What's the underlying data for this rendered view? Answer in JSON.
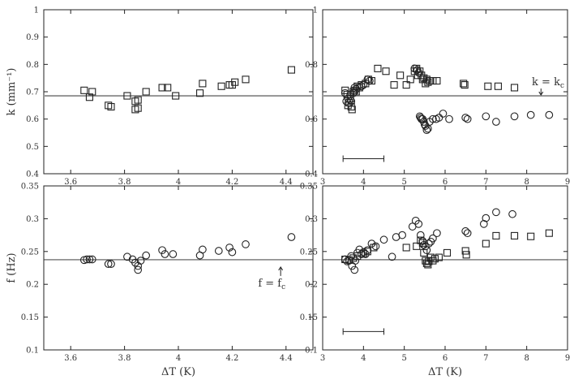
{
  "chart_data": [
    {
      "id": "top-left",
      "type": "scatter",
      "ylabel": "k (mm⁻¹)",
      "xlabel": "",
      "xlim": [
        3.5,
        4.5
      ],
      "ylim": [
        0.4,
        1.0
      ],
      "xticks": [
        3.6,
        3.8,
        4.0,
        4.2,
        4.4
      ],
      "xtick_labels": [
        "3.6",
        "3.8",
        "4",
        "4.2",
        "4.4"
      ],
      "yticks": [
        0.4,
        0.5,
        0.6,
        0.7,
        0.8,
        0.9,
        1.0
      ],
      "ytick_labels": [
        "0.4",
        "0.5",
        "0.6",
        "0.7",
        "0.8",
        "0.9",
        "1"
      ],
      "refline": {
        "y": 0.685,
        "style": "thick-gray"
      },
      "series": [
        {
          "marker": "square",
          "points": [
            [
              3.65,
              0.705
            ],
            [
              3.67,
              0.68
            ],
            [
              3.68,
              0.7
            ],
            [
              3.74,
              0.65
            ],
            [
              3.75,
              0.645
            ],
            [
              3.81,
              0.685
            ],
            [
              3.84,
              0.665
            ],
            [
              3.84,
              0.635
            ],
            [
              3.85,
              0.64
            ],
            [
              3.85,
              0.67
            ],
            [
              3.88,
              0.7
            ],
            [
              3.94,
              0.715
            ],
            [
              3.96,
              0.715
            ],
            [
              3.99,
              0.685
            ],
            [
              4.08,
              0.695
            ],
            [
              4.09,
              0.73
            ],
            [
              4.16,
              0.72
            ],
            [
              4.19,
              0.725
            ],
            [
              4.2,
              0.725
            ],
            [
              4.21,
              0.735
            ],
            [
              4.25,
              0.745
            ],
            [
              4.42,
              0.78
            ]
          ]
        }
      ]
    },
    {
      "id": "top-right",
      "type": "scatter",
      "ylabel": "",
      "xlabel": "",
      "xlim": [
        3,
        9
      ],
      "ylim": [
        0.4,
        1.0
      ],
      "xticks": [
        3,
        4,
        5,
        6,
        7,
        8,
        9
      ],
      "xtick_labels": [
        "3",
        "4",
        "5",
        "6",
        "7",
        "8",
        "9"
      ],
      "yticks": [
        0.4,
        0.5,
        0.6,
        0.7,
        0.8,
        0.9,
        1.0
      ],
      "ytick_labels": [
        "0.4",
        "0.6",
        "0.8",
        "1"
      ],
      "ytick_label_values": [
        0.4,
        0.6,
        0.8,
        1.0
      ],
      "refline": {
        "y": 0.685,
        "style": "thick-gray"
      },
      "annotation": {
        "text_main": "k = k",
        "text_sub": "c",
        "arrow_x": 8.35
      },
      "error_bar": {
        "x_center": 4.0,
        "half_width": 0.5,
        "y": 0.455
      },
      "series": [
        {
          "marker": "square",
          "points": [
            [
              3.55,
              0.705
            ],
            [
              3.6,
              0.69
            ],
            [
              3.62,
              0.65
            ],
            [
              3.65,
              0.66
            ],
            [
              3.68,
              0.675
            ],
            [
              3.7,
              0.645
            ],
            [
              3.72,
              0.635
            ],
            [
              3.75,
              0.7
            ],
            [
              3.78,
              0.705
            ],
            [
              3.82,
              0.7
            ],
            [
              3.85,
              0.72
            ],
            [
              3.9,
              0.715
            ],
            [
              3.95,
              0.725
            ],
            [
              4.05,
              0.73
            ],
            [
              4.12,
              0.745
            ],
            [
              4.2,
              0.74
            ],
            [
              4.35,
              0.785
            ],
            [
              4.55,
              0.775
            ],
            [
              4.75,
              0.725
            ],
            [
              4.9,
              0.76
            ],
            [
              5.05,
              0.725
            ],
            [
              5.15,
              0.745
            ],
            [
              5.25,
              0.775
            ],
            [
              5.3,
              0.785
            ],
            [
              5.33,
              0.76
            ],
            [
              5.38,
              0.775
            ],
            [
              5.42,
              0.76
            ],
            [
              5.45,
              0.745
            ],
            [
              5.48,
              0.75
            ],
            [
              5.52,
              0.73
            ],
            [
              5.55,
              0.745
            ],
            [
              5.58,
              0.735
            ],
            [
              5.62,
              0.74
            ],
            [
              5.7,
              0.74
            ],
            [
              5.8,
              0.74
            ],
            [
              6.45,
              0.73
            ],
            [
              6.48,
              0.725
            ],
            [
              7.05,
              0.72
            ],
            [
              7.3,
              0.72
            ],
            [
              7.7,
              0.715
            ]
          ]
        },
        {
          "marker": "circle",
          "points": [
            [
              3.55,
              0.695
            ],
            [
              3.58,
              0.665
            ],
            [
              3.62,
              0.675
            ],
            [
              3.68,
              0.69
            ],
            [
              3.7,
              0.665
            ],
            [
              3.75,
              0.695
            ],
            [
              3.78,
              0.715
            ],
            [
              3.82,
              0.71
            ],
            [
              3.95,
              0.72
            ],
            [
              4.0,
              0.725
            ],
            [
              4.1,
              0.745
            ],
            [
              4.15,
              0.74
            ],
            [
              5.25,
              0.785
            ],
            [
              5.32,
              0.78
            ],
            [
              5.35,
              0.77
            ],
            [
              5.38,
              0.61
            ],
            [
              5.4,
              0.605
            ],
            [
              5.42,
              0.6
            ],
            [
              5.45,
              0.6
            ],
            [
              5.48,
              0.59
            ],
            [
              5.5,
              0.58
            ],
            [
              5.52,
              0.575
            ],
            [
              5.55,
              0.56
            ],
            [
              5.58,
              0.565
            ],
            [
              5.62,
              0.59
            ],
            [
              5.7,
              0.6
            ],
            [
              5.78,
              0.6
            ],
            [
              5.85,
              0.605
            ],
            [
              5.95,
              0.62
            ],
            [
              6.1,
              0.6
            ],
            [
              6.5,
              0.605
            ],
            [
              6.55,
              0.6
            ],
            [
              7.0,
              0.61
            ],
            [
              7.25,
              0.59
            ],
            [
              7.7,
              0.61
            ],
            [
              8.1,
              0.615
            ],
            [
              8.55,
              0.615
            ]
          ]
        }
      ]
    },
    {
      "id": "bottom-left",
      "type": "scatter",
      "ylabel": "f (Hz)",
      "xlabel": "ΔT (K)",
      "xlim": [
        3.5,
        4.5
      ],
      "ylim": [
        0.1,
        0.35
      ],
      "xticks": [
        3.6,
        3.8,
        4.0,
        4.2,
        4.4
      ],
      "xtick_labels": [
        "3.6",
        "3.8",
        "4",
        "4.2",
        "4.4"
      ],
      "yticks": [
        0.1,
        0.15,
        0.2,
        0.25,
        0.3,
        0.35
      ],
      "ytick_labels": [
        "0.1",
        "0.15",
        "0.2",
        "0.25",
        "0.3",
        "0.35"
      ],
      "refline": {
        "y": 0.2375,
        "style": "thin-black"
      },
      "annotation": {
        "text_main": "f = f",
        "text_sub": "c",
        "arrow_x": 4.38
      },
      "series": [
        {
          "marker": "circle",
          "points": [
            [
              3.65,
              0.237
            ],
            [
              3.66,
              0.238
            ],
            [
              3.67,
              0.238
            ],
            [
              3.68,
              0.238
            ],
            [
              3.74,
              0.231
            ],
            [
              3.75,
              0.231
            ],
            [
              3.81,
              0.242
            ],
            [
              3.83,
              0.238
            ],
            [
              3.84,
              0.233
            ],
            [
              3.85,
              0.228
            ],
            [
              3.85,
              0.222
            ],
            [
              3.86,
              0.236
            ],
            [
              3.88,
              0.244
            ],
            [
              3.94,
              0.252
            ],
            [
              3.95,
              0.246
            ],
            [
              3.98,
              0.246
            ],
            [
              4.08,
              0.244
            ],
            [
              4.09,
              0.253
            ],
            [
              4.15,
              0.251
            ],
            [
              4.19,
              0.256
            ],
            [
              4.2,
              0.249
            ],
            [
              4.25,
              0.261
            ],
            [
              4.42,
              0.272
            ]
          ]
        }
      ]
    },
    {
      "id": "bottom-right",
      "type": "scatter",
      "ylabel": "",
      "xlabel": "ΔT (K)",
      "xlim": [
        3,
        9
      ],
      "ylim": [
        0.1,
        0.35
      ],
      "xticks": [
        3,
        4,
        5,
        6,
        7,
        8,
        9
      ],
      "xtick_labels": [
        "3",
        "4",
        "5",
        "6",
        "7",
        "8",
        "9"
      ],
      "yticks": [
        0.1,
        0.15,
        0.2,
        0.25,
        0.3,
        0.35
      ],
      "ytick_labels": [
        "0.1",
        "0.15",
        "0.2",
        "0.25",
        "0.3",
        "0.35"
      ],
      "refline": {
        "y": 0.2375,
        "style": "thin-black"
      },
      "error_bar": {
        "x_center": 4.0,
        "half_width": 0.5,
        "y": 0.128
      },
      "series": [
        {
          "marker": "circle",
          "points": [
            [
              3.55,
              0.238
            ],
            [
              3.6,
              0.235
            ],
            [
              3.65,
              0.236
            ],
            [
              3.7,
              0.243
            ],
            [
              3.72,
              0.228
            ],
            [
              3.78,
              0.222
            ],
            [
              3.8,
              0.236
            ],
            [
              3.85,
              0.248
            ],
            [
              3.9,
              0.253
            ],
            [
              3.95,
              0.246
            ],
            [
              4.0,
              0.249
            ],
            [
              4.05,
              0.246
            ],
            [
              4.1,
              0.252
            ],
            [
              4.2,
              0.262
            ],
            [
              4.3,
              0.258
            ],
            [
              4.5,
              0.268
            ],
            [
              4.7,
              0.242
            ],
            [
              4.8,
              0.272
            ],
            [
              4.95,
              0.275
            ],
            [
              5.2,
              0.288
            ],
            [
              5.28,
              0.297
            ],
            [
              5.35,
              0.292
            ],
            [
              5.4,
              0.275
            ],
            [
              5.45,
              0.266
            ],
            [
              5.48,
              0.26
            ],
            [
              5.52,
              0.258
            ],
            [
              5.55,
              0.252
            ],
            [
              5.6,
              0.262
            ],
            [
              5.65,
              0.265
            ],
            [
              5.7,
              0.27
            ],
            [
              5.8,
              0.278
            ],
            [
              6.5,
              0.281
            ],
            [
              6.55,
              0.278
            ],
            [
              6.95,
              0.292
            ],
            [
              7.0,
              0.301
            ],
            [
              7.25,
              0.31
            ],
            [
              7.65,
              0.307
            ]
          ]
        },
        {
          "marker": "square",
          "points": [
            [
              3.55,
              0.238
            ],
            [
              3.65,
              0.237
            ],
            [
              3.75,
              0.24
            ],
            [
              3.85,
              0.243
            ],
            [
              4.0,
              0.247
            ],
            [
              4.1,
              0.25
            ],
            [
              4.25,
              0.256
            ],
            [
              5.05,
              0.256
            ],
            [
              5.3,
              0.258
            ],
            [
              5.4,
              0.267
            ],
            [
              5.45,
              0.263
            ],
            [
              5.48,
              0.248
            ],
            [
              5.52,
              0.236
            ],
            [
              5.55,
              0.232
            ],
            [
              5.58,
              0.23
            ],
            [
              5.6,
              0.235
            ],
            [
              5.65,
              0.241
            ],
            [
              5.7,
              0.236
            ],
            [
              5.75,
              0.239
            ],
            [
              5.85,
              0.241
            ],
            [
              6.05,
              0.248
            ],
            [
              6.5,
              0.251
            ],
            [
              6.52,
              0.245
            ],
            [
              7.0,
              0.262
            ],
            [
              7.25,
              0.274
            ],
            [
              7.7,
              0.274
            ],
            [
              8.1,
              0.273
            ],
            [
              8.55,
              0.278
            ]
          ]
        }
      ]
    }
  ]
}
